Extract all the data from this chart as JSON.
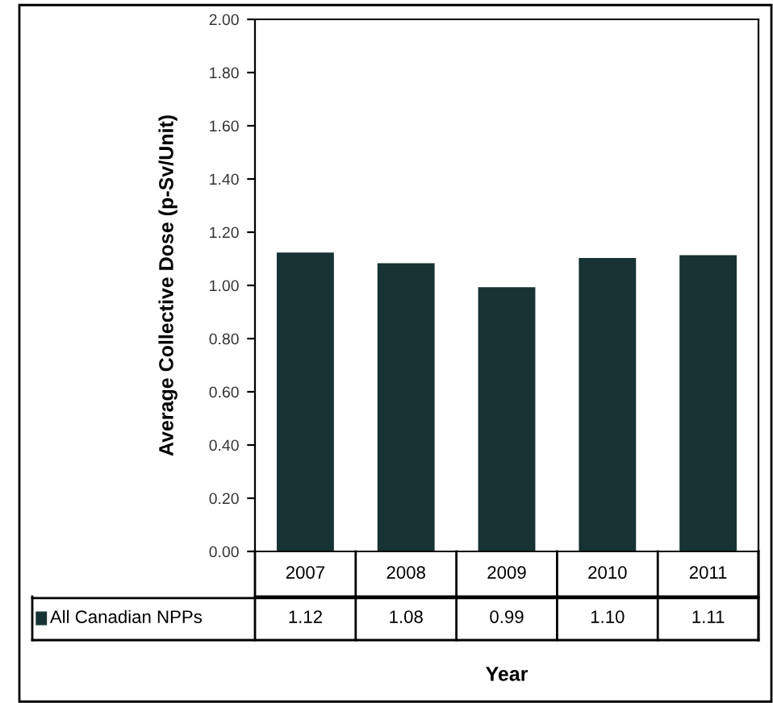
{
  "chart_data": {
    "type": "bar",
    "ylabel": "Average Collective Dose (p-Sv/Unit)",
    "xlabel": "Year",
    "categories": [
      "2007",
      "2008",
      "2009",
      "2010",
      "2011"
    ],
    "series": [
      {
        "name": "All Canadian NPPs",
        "color": "#173333",
        "values": [
          1.12,
          1.08,
          0.99,
          1.1,
          1.11
        ],
        "value_labels": [
          "1.12",
          "1.08",
          "0.99",
          "1.10",
          "1.11"
        ]
      }
    ],
    "ylim": [
      0,
      2.0
    ],
    "yticks": [
      {
        "value": 0,
        "label": "0.00"
      },
      {
        "value": 0.2,
        "label": "0.20"
      },
      {
        "value": 0.4,
        "label": "0.40"
      },
      {
        "value": 0.6,
        "label": "0.60"
      },
      {
        "value": 0.8,
        "label": "0.80"
      },
      {
        "value": 1.0,
        "label": "1.00"
      },
      {
        "value": 1.2,
        "label": "1.20"
      },
      {
        "value": 1.4,
        "label": "1.40"
      },
      {
        "value": 1.6,
        "label": "1.60"
      },
      {
        "value": 1.8,
        "label": "1.80"
      },
      {
        "value": 2.0,
        "label": "2.00"
      }
    ],
    "grid": false,
    "legend": "bottom"
  }
}
